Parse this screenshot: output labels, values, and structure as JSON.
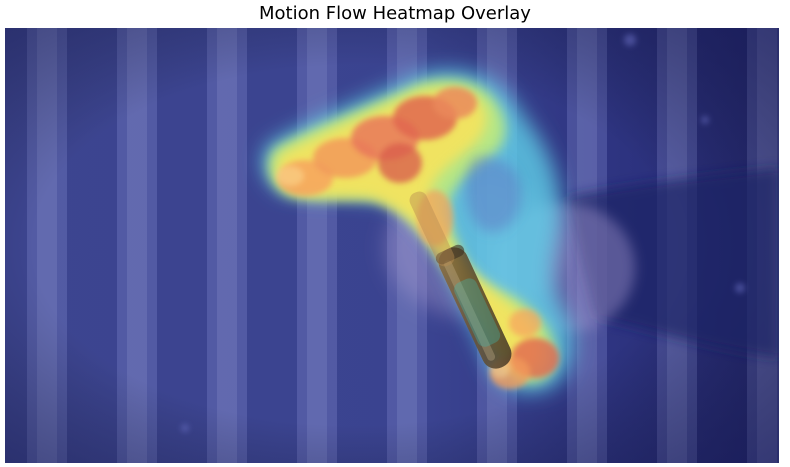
{
  "figure": {
    "title": "Motion Flow Heatmap Overlay"
  },
  "image": {
    "subject": "hand-holding-test-tube-icon",
    "colormap": [
      "#26287a",
      "#4b5bb8",
      "#63c4e4",
      "#a8f08c",
      "#f5e35a",
      "#f7a35e",
      "#d9604e"
    ]
  }
}
